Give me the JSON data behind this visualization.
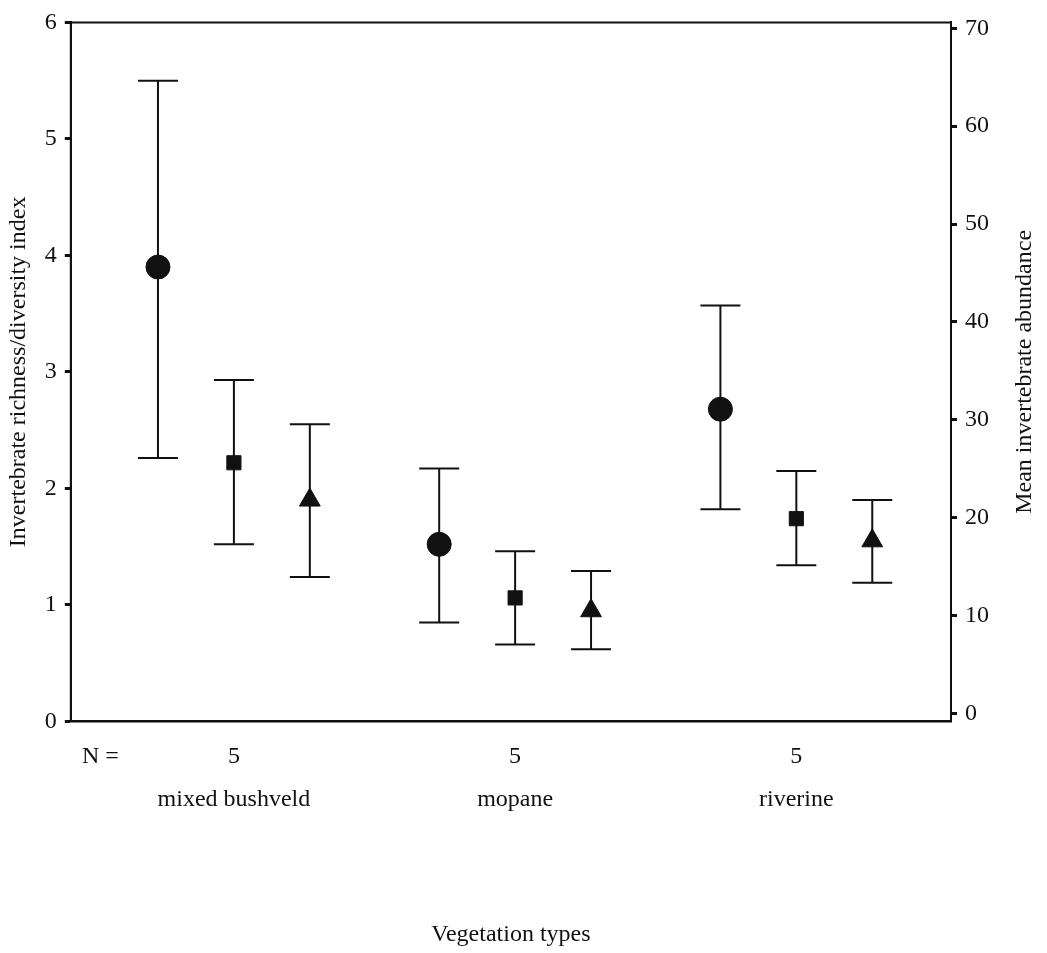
{
  "chart_data": {
    "type": "scatter",
    "xlabel": "Vegetation types",
    "ylabel": "Invertebrate richness/diversity index",
    "y2label": "Mean invertebrate abundance",
    "categories": [
      "mixed bushveld",
      "mopane",
      "riverine"
    ],
    "series": [
      {
        "color": "#111111",
        "marker": "circle",
        "values": [
          3.9,
          1.52,
          2.68
        ],
        "errors": [
          [
            2.26,
            5.5
          ],
          [
            0.85,
            2.17
          ],
          [
            1.82,
            3.57
          ]
        ]
      },
      {
        "color": "#111111",
        "marker": "square",
        "values": [
          2.22,
          1.06,
          1.74
        ],
        "errors": [
          [
            1.52,
            2.93
          ],
          [
            0.66,
            1.46
          ],
          [
            1.34,
            2.15
          ]
        ]
      },
      {
        "color": "#111111",
        "marker": "triangle",
        "values": [
          1.9,
          0.95,
          1.55
        ],
        "errors": [
          [
            1.24,
            2.55
          ],
          [
            0.62,
            1.29
          ],
          [
            1.19,
            1.9
          ]
        ]
      }
    ],
    "ylim": [
      0,
      6
    ],
    "yticks": [
      0,
      1,
      2,
      3,
      4,
      5,
      6
    ],
    "y2lim": [
      -0.8,
      70.6
    ],
    "y2ticks": [
      0,
      10,
      20,
      30,
      40,
      50,
      60,
      70
    ],
    "annotations": [
      "N =",
      "5",
      "5",
      "5"
    ],
    "grid": false,
    "legend": false
  }
}
